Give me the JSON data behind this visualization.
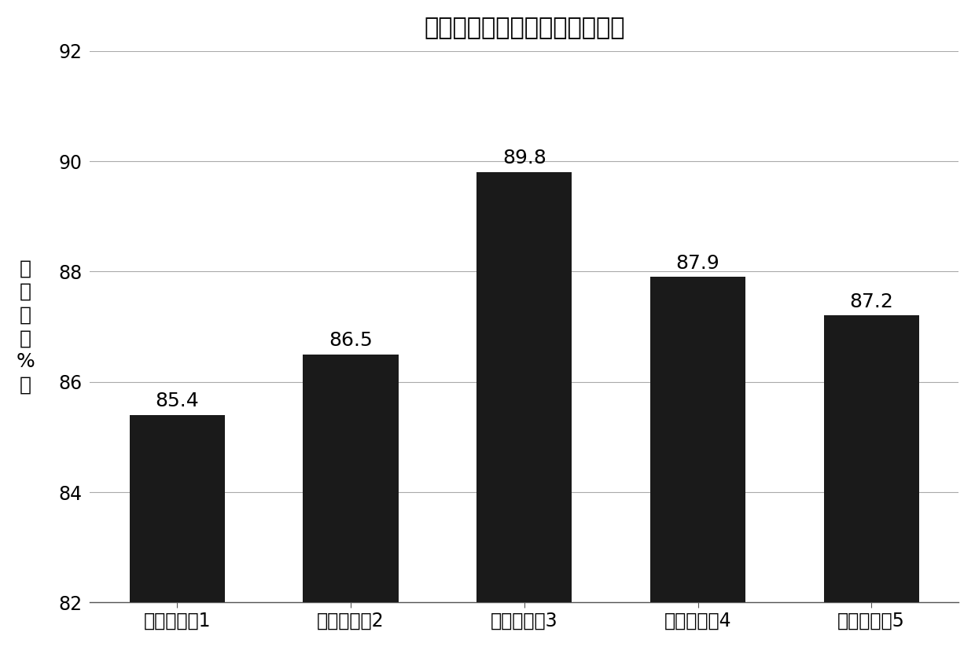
{
  "title": "不同复合酶制剂对出油率的影响",
  "categories": [
    "复合酶制制1",
    "复合酶制制2",
    "复合酶制制3",
    "复合酶制制4",
    "复合酶制制5"
  ],
  "values": [
    85.4,
    86.5,
    89.8,
    87.9,
    87.2
  ],
  "bar_color": "#1a1a1a",
  "ylabel_chars": [
    "出",
    "油",
    "率",
    "（",
    "%",
    "）"
  ],
  "ylim": [
    82,
    92
  ],
  "ybase": 82,
  "yticks": [
    82,
    84,
    86,
    88,
    90,
    92
  ],
  "bar_width": 0.55,
  "background_color": "#ffffff",
  "title_fontsize": 22,
  "label_fontsize": 18,
  "tick_fontsize": 17,
  "value_fontsize": 18,
  "ylabel_fontsize": 18
}
